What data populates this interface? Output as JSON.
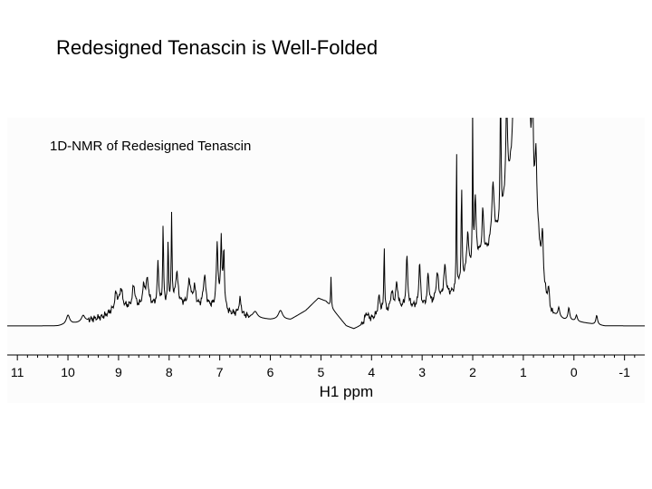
{
  "slide": {
    "title": "Redesigned Tenascin is Well-Folded"
  },
  "chart_data": {
    "type": "line",
    "title": "1D-NMR of Redesigned Tenascin",
    "xlabel": "H1 ppm",
    "ylabel": "",
    "xlim": [
      11.2,
      -1.4
    ],
    "x_reversed": true,
    "ylim": [
      0,
      1.0
    ],
    "grid": false,
    "x_ticks": [
      11,
      10,
      9,
      8,
      7,
      6,
      5,
      4,
      3,
      2,
      1,
      0,
      -1
    ],
    "x_tick_labels": [
      "11",
      "10",
      "9",
      "8",
      "7",
      "6",
      "5",
      "4",
      "3",
      "2",
      "1",
      "0",
      "-1"
    ],
    "series": [
      {
        "baseline": [
          [
            11.2,
            0.0
          ],
          [
            10.2,
            0.0
          ],
          [
            9.8,
            0.01
          ],
          [
            9.3,
            0.03
          ],
          [
            9.0,
            0.06
          ],
          [
            8.6,
            0.06
          ],
          [
            8.2,
            0.07
          ],
          [
            7.8,
            0.07
          ],
          [
            7.4,
            0.06
          ],
          [
            7.0,
            0.06
          ],
          [
            6.8,
            0.04
          ],
          [
            6.5,
            0.03
          ],
          [
            6.0,
            0.02
          ],
          [
            5.6,
            0.02
          ],
          [
            5.3,
            0.05
          ],
          [
            5.05,
            0.09
          ],
          [
            4.9,
            0.08
          ],
          [
            4.7,
            0.04
          ],
          [
            4.5,
            0.0
          ],
          [
            4.35,
            -0.01
          ],
          [
            4.2,
            0.0
          ],
          [
            4.0,
            0.02
          ],
          [
            3.7,
            0.04
          ],
          [
            3.3,
            0.06
          ],
          [
            3.0,
            0.06
          ],
          [
            2.6,
            0.08
          ],
          [
            2.3,
            0.12
          ],
          [
            2.1,
            0.18
          ],
          [
            1.9,
            0.22
          ],
          [
            1.7,
            0.24
          ],
          [
            1.5,
            0.3
          ],
          [
            1.35,
            0.4
          ],
          [
            1.2,
            0.55
          ],
          [
            1.0,
            0.62
          ],
          [
            0.9,
            0.5
          ],
          [
            0.8,
            0.4
          ],
          [
            0.7,
            0.28
          ],
          [
            0.6,
            0.12
          ],
          [
            0.45,
            0.04
          ],
          [
            0.2,
            0.02
          ],
          [
            -0.2,
            0.01
          ],
          [
            -0.6,
            0.0
          ],
          [
            -1.4,
            0.0
          ]
        ],
        "peaks": [
          [
            10.0,
            0.03,
            0.04
          ],
          [
            9.7,
            0.02,
            0.04
          ],
          [
            9.05,
            0.05,
            0.03
          ],
          [
            8.95,
            0.06,
            0.03
          ],
          [
            8.7,
            0.07,
            0.03
          ],
          [
            8.5,
            0.06,
            0.03
          ],
          [
            8.43,
            0.08,
            0.03
          ],
          [
            8.22,
            0.14,
            0.015
          ],
          [
            8.12,
            0.26,
            0.01
          ],
          [
            8.02,
            0.2,
            0.01
          ],
          [
            7.95,
            0.28,
            0.01
          ],
          [
            7.85,
            0.1,
            0.03
          ],
          [
            7.6,
            0.08,
            0.03
          ],
          [
            7.5,
            0.06,
            0.03
          ],
          [
            7.3,
            0.1,
            0.03
          ],
          [
            7.05,
            0.2,
            0.02
          ],
          [
            6.97,
            0.22,
            0.015
          ],
          [
            6.92,
            0.18,
            0.015
          ],
          [
            6.6,
            0.05,
            0.03
          ],
          [
            6.3,
            0.02,
            0.05
          ],
          [
            5.8,
            0.03,
            0.05
          ],
          [
            4.8,
            0.1,
            0.008
          ],
          [
            4.1,
            0.03,
            0.04
          ],
          [
            3.85,
            0.06,
            0.03
          ],
          [
            3.75,
            0.22,
            0.01
          ],
          [
            3.6,
            0.06,
            0.03
          ],
          [
            3.5,
            0.08,
            0.03
          ],
          [
            3.3,
            0.16,
            0.02
          ],
          [
            3.05,
            0.14,
            0.02
          ],
          [
            2.88,
            0.1,
            0.02
          ],
          [
            2.7,
            0.09,
            0.03
          ],
          [
            2.55,
            0.1,
            0.03
          ],
          [
            2.32,
            0.55,
            0.006
          ],
          [
            2.22,
            0.3,
            0.01
          ],
          [
            2.1,
            0.12,
            0.02
          ],
          [
            2.0,
            0.52,
            0.006
          ],
          [
            1.95,
            0.2,
            0.02
          ],
          [
            1.8,
            0.14,
            0.02
          ],
          [
            1.6,
            0.18,
            0.03
          ],
          [
            1.45,
            0.4,
            0.012
          ],
          [
            1.33,
            0.3,
            0.02
          ],
          [
            1.18,
            0.45,
            0.02
          ],
          [
            1.08,
            0.35,
            0.02
          ],
          [
            0.98,
            0.6,
            0.012
          ],
          [
            0.94,
            0.32,
            0.015
          ],
          [
            0.88,
            0.55,
            0.012
          ],
          [
            0.82,
            0.42,
            0.015
          ],
          [
            0.75,
            0.22,
            0.02
          ],
          [
            0.62,
            0.15,
            0.02
          ],
          [
            0.5,
            0.05,
            0.02
          ],
          [
            0.3,
            0.03,
            0.02
          ],
          [
            0.1,
            0.04,
            0.02
          ],
          [
            -0.05,
            0.02,
            0.02
          ],
          [
            -0.45,
            0.03,
            0.02
          ]
        ]
      }
    ]
  }
}
